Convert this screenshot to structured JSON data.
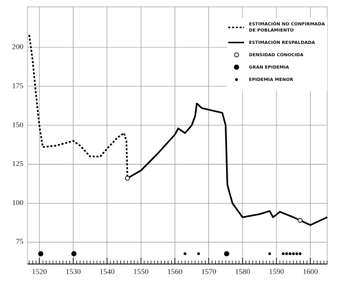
{
  "chart_data": {
    "type": "line",
    "xlim": [
      1516.5,
      1605
    ],
    "ylim": [
      61,
      226
    ],
    "xticks": [
      1520,
      1530,
      1540,
      1550,
      1560,
      1570,
      1580,
      1590,
      1600
    ],
    "yticks": [
      75,
      100,
      125,
      150,
      175,
      200
    ],
    "xminor": 1,
    "grid": true,
    "legend": "upper right",
    "series": [
      {
        "name": "ESTIMACIÓN NO CONFIRMADA DE POBLAMIENTO",
        "style": "dashed",
        "color": "#000000",
        "x": [
          1517,
          1518,
          1519,
          1520,
          1521,
          1525,
          1530,
          1532,
          1535,
          1538,
          1540,
          1543,
          1545,
          1545.7,
          1546
        ],
        "values": [
          208,
          192,
          170,
          150,
          136,
          137,
          140,
          137,
          130,
          130,
          135,
          142,
          145,
          140,
          117
        ]
      },
      {
        "name": "ESTIMACIÓN RESPALDADA",
        "style": "solid",
        "color": "#000000",
        "x": [
          1546,
          1550,
          1555,
          1560,
          1561,
          1563,
          1565,
          1566,
          1566.5,
          1568,
          1570,
          1574,
          1575,
          1575.5,
          1576,
          1577,
          1580,
          1585,
          1588,
          1589,
          1591,
          1595,
          1597,
          1600,
          1605
        ],
        "values": [
          116,
          121,
          132,
          144,
          148,
          145,
          150,
          156,
          164,
          161,
          160,
          158,
          150,
          112,
          108,
          100,
          91,
          93,
          95,
          91,
          94.5,
          91,
          89,
          86,
          91
        ]
      }
    ],
    "markers": [
      {
        "name": "DENSIDAD CONOCIDA",
        "style": "open",
        "x": [
          1546,
          1597
        ],
        "values": [
          116,
          89
        ]
      },
      {
        "name": "GRAN EPIDEMIA",
        "style": "large",
        "x": [
          1520.4,
          1530.2,
          1575.3
        ]
      },
      {
        "name": "EPIDEMIA MENOR",
        "style": "small",
        "x": [
          1563,
          1567,
          1588,
          1592,
          1593,
          1594,
          1595,
          1596,
          1597
        ]
      }
    ]
  }
}
